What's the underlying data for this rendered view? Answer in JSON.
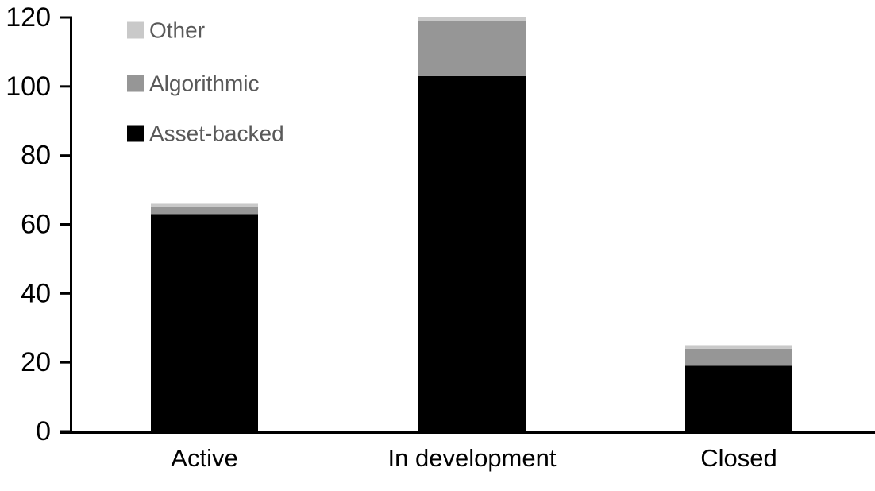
{
  "chart_data": {
    "type": "bar",
    "stacked": true,
    "title": "",
    "xlabel": "",
    "ylabel": "",
    "categories": [
      "Active",
      "In development",
      "Closed"
    ],
    "series": [
      {
        "name": "Asset-backed",
        "color": "#000000",
        "values": [
          63,
          103,
          19
        ]
      },
      {
        "name": "Algorithmic",
        "color": "#969696",
        "values": [
          2,
          16,
          5
        ]
      },
      {
        "name": "Other",
        "color": "#c9c9c9",
        "values": [
          1,
          1,
          1
        ]
      }
    ],
    "totals": [
      66,
      120,
      25
    ],
    "ylim": [
      0,
      120
    ],
    "yticks": [
      0,
      20,
      40,
      60,
      80,
      100,
      120
    ],
    "grid": false,
    "legend_position": "top-left",
    "legend_order": [
      "Other",
      "Algorithmic",
      "Asset-backed"
    ],
    "colors": {
      "axis": "#000000",
      "tick_label": "#000000",
      "category_label": "#000000",
      "legend_text": "#595959",
      "background": "#ffffff"
    }
  }
}
